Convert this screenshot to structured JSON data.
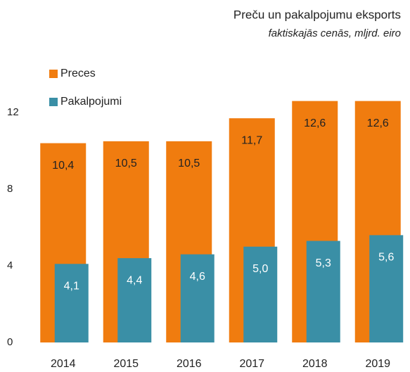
{
  "chart_data": {
    "type": "bar",
    "title": "Preču un pakalpojumu eksports",
    "subtitle": "faktiskajās cenās, mljrd. eiro",
    "categories": [
      "2014",
      "2015",
      "2016",
      "2017",
      "2018",
      "2019"
    ],
    "series": [
      {
        "name": "Preces",
        "color": "#f07c0f",
        "values": [
          10.4,
          10.5,
          10.5,
          11.7,
          12.6,
          12.6
        ],
        "value_labels": [
          "10,4",
          "10,5",
          "10,5",
          "11,7",
          "12,6",
          "12,6"
        ]
      },
      {
        "name": "Pakalpojumi",
        "color": "#3a8fa6",
        "values": [
          4.1,
          4.4,
          4.6,
          5.0,
          5.3,
          5.6
        ],
        "value_labels": [
          "4,1",
          "4,4",
          "4,6",
          "5,0",
          "5,3",
          "5,6"
        ]
      }
    ],
    "ylim": [
      0,
      12
    ],
    "yticks": [
      0,
      4,
      8,
      12
    ],
    "grid": false
  }
}
